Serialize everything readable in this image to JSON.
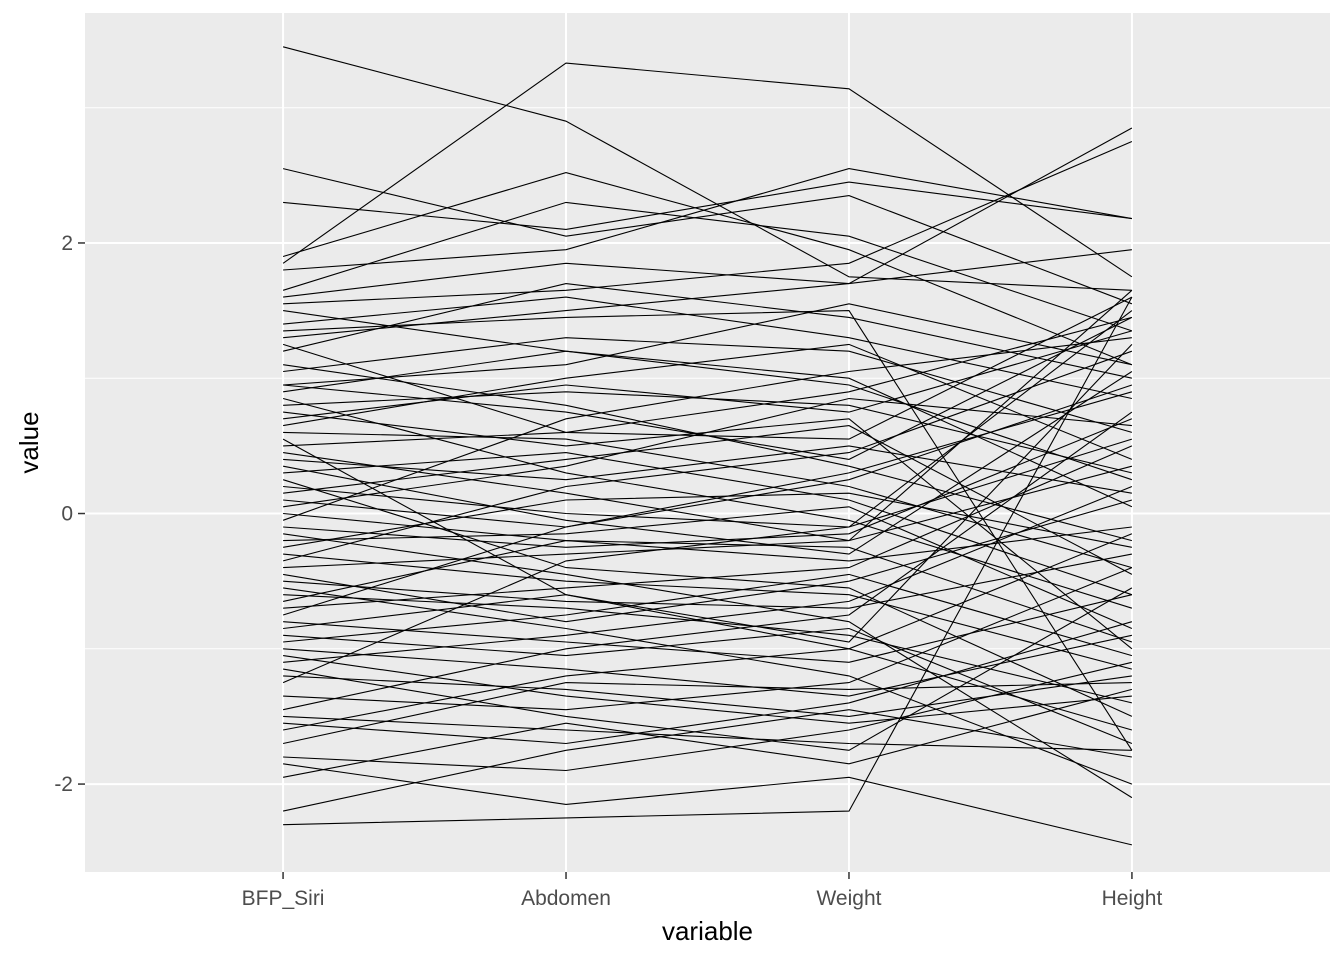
{
  "chart_data": {
    "type": "line",
    "title": "",
    "xlabel": "variable",
    "ylabel": "value",
    "categories": [
      "BFP_Siri",
      "Abdomen",
      "Weight",
      "Height"
    ],
    "ylim": [
      -2.65,
      3.7
    ],
    "yticks": [
      -2,
      0,
      2
    ],
    "ytick_labels": [
      "-2",
      "0",
      "2"
    ],
    "grid": true,
    "legend": "none",
    "colors": {
      "panel": "#EBEBEB",
      "grid": "#FFFFFF",
      "line": "#000000",
      "tick_text": "#4D4D4D"
    },
    "series": [
      {
        "values": [
          3.45,
          2.9,
          1.75,
          1.65
        ]
      },
      {
        "values": [
          1.85,
          3.33,
          3.14,
          1.75
        ]
      },
      {
        "values": [
          2.55,
          2.05,
          2.35,
          1.55
        ]
      },
      {
        "values": [
          2.3,
          2.1,
          2.45,
          2.18
        ]
      },
      {
        "values": [
          1.9,
          2.52,
          1.95,
          1.1
        ]
      },
      {
        "values": [
          1.8,
          1.95,
          2.55,
          2.18
        ]
      },
      {
        "values": [
          1.65,
          2.3,
          2.05,
          1.35
        ]
      },
      {
        "values": [
          1.6,
          1.85,
          1.7,
          2.85
        ]
      },
      {
        "values": [
          1.55,
          1.65,
          1.85,
          2.75
        ]
      },
      {
        "values": [
          1.4,
          1.6,
          1.3,
          0.85
        ]
      },
      {
        "values": [
          1.3,
          1.5,
          1.7,
          1.95
        ]
      },
      {
        "values": [
          1.2,
          1.7,
          1.45,
          1.0
        ]
      },
      {
        "values": [
          1.05,
          1.3,
          1.2,
          0.6
        ]
      },
      {
        "values": [
          0.95,
          1.1,
          1.55,
          1.1
        ]
      },
      {
        "values": [
          0.8,
          0.9,
          0.8,
          0.3
        ]
      },
      {
        "values": [
          0.7,
          0.95,
          0.75,
          1.35
        ]
      },
      {
        "values": [
          0.6,
          0.55,
          0.2,
          -0.4
        ]
      },
      {
        "values": [
          0.5,
          0.6,
          0.9,
          1.45
        ]
      },
      {
        "values": [
          0.4,
          0.25,
          0.5,
          0.15
        ]
      },
      {
        "values": [
          0.3,
          0.45,
          0.1,
          -0.6
        ]
      },
      {
        "values": [
          0.2,
          0.0,
          -0.1,
          0.55
        ]
      },
      {
        "values": [
          0.1,
          -0.1,
          0.3,
          0.9
        ]
      },
      {
        "values": [
          0.0,
          -0.2,
          -0.35,
          -0.1
        ]
      },
      {
        "values": [
          -0.1,
          -0.25,
          -0.15,
          0.7
        ]
      },
      {
        "values": [
          -0.2,
          -0.15,
          0.05,
          -0.85
        ]
      },
      {
        "values": [
          -0.3,
          -0.5,
          -0.6,
          -1.15
        ]
      },
      {
        "values": [
          -0.4,
          -0.3,
          -0.2,
          0.35
        ]
      },
      {
        "values": [
          -0.5,
          -0.65,
          -0.7,
          -0.3
        ]
      },
      {
        "values": [
          -0.6,
          -0.7,
          -0.9,
          -1.4
        ]
      },
      {
        "values": [
          -0.7,
          -0.55,
          -0.4,
          0.5
        ]
      },
      {
        "values": [
          -0.8,
          -0.95,
          -1.1,
          -0.6
        ]
      },
      {
        "values": [
          -0.9,
          -1.05,
          -0.85,
          -1.7
        ]
      },
      {
        "values": [
          -1.0,
          -1.15,
          -1.35,
          -0.9
        ]
      },
      {
        "values": [
          -1.1,
          -0.9,
          -0.65,
          0.2
        ]
      },
      {
        "values": [
          -1.2,
          -1.3,
          -1.5,
          -1.2
        ]
      },
      {
        "values": [
          -1.35,
          -1.45,
          -1.25,
          -0.4
        ]
      },
      {
        "values": [
          -1.5,
          -1.6,
          -1.7,
          -1.75
        ]
      },
      {
        "values": [
          -1.6,
          -1.2,
          -1.0,
          -0.15
        ]
      },
      {
        "values": [
          -1.8,
          -1.9,
          -1.6,
          -1.1
        ]
      },
      {
        "values": [
          -1.85,
          -2.15,
          -1.95,
          -2.45
        ]
      },
      {
        "values": [
          -1.95,
          -1.55,
          -1.85,
          -1.3
        ]
      },
      {
        "values": [
          -2.2,
          -1.75,
          -1.45,
          -1.8
        ]
      },
      {
        "values": [
          -2.3,
          -2.25,
          -2.2,
          1.6
        ]
      },
      {
        "values": [
          -0.05,
          0.7,
          1.05,
          1.3
        ]
      },
      {
        "values": [
          0.25,
          -0.4,
          -0.55,
          -1.5
        ]
      },
      {
        "values": [
          -0.35,
          0.2,
          0.45,
          1.2
        ]
      },
      {
        "values": [
          0.85,
          0.3,
          -0.05,
          -0.7
        ]
      },
      {
        "values": [
          -0.75,
          -0.1,
          0.25,
          0.95
        ]
      },
      {
        "values": [
          0.55,
          -0.6,
          -1.0,
          -1.6
        ]
      },
      {
        "values": [
          -1.25,
          -0.35,
          -0.1,
          1.5
        ]
      },
      {
        "values": [
          1.1,
          0.8,
          0.35,
          -0.2
        ]
      },
      {
        "values": [
          -0.55,
          -0.85,
          -1.2,
          -2.0
        ]
      },
      {
        "values": [
          0.15,
          0.4,
          0.65,
          -0.45
        ]
      },
      {
        "values": [
          -0.95,
          -0.75,
          -0.45,
          -1.05
        ]
      },
      {
        "values": [
          0.65,
          1.0,
          1.25,
          0.4
        ]
      },
      {
        "values": [
          -1.45,
          -1.0,
          -0.75,
          0.75
        ]
      },
      {
        "values": [
          0.35,
          -0.05,
          -0.3,
          1.05
        ]
      },
      {
        "values": [
          -0.15,
          -0.45,
          -0.8,
          -2.1
        ]
      },
      {
        "values": [
          1.25,
          0.6,
          0.55,
          1.6
        ]
      },
      {
        "values": [
          -0.65,
          -0.2,
          -0.25,
          -0.95
        ]
      },
      {
        "values": [
          0.9,
          1.2,
          1.0,
          0.05
        ]
      },
      {
        "values": [
          -1.05,
          -1.35,
          -1.55,
          -1.35
        ]
      },
      {
        "values": [
          0.45,
          0.15,
          -0.2,
          1.65
        ]
      },
      {
        "values": [
          -0.25,
          0.1,
          0.15,
          -0.25
        ]
      },
      {
        "values": [
          0.75,
          0.5,
          0.7,
          -1.0
        ]
      },
      {
        "values": [
          -1.15,
          -1.5,
          -1.75,
          -0.55
        ]
      },
      {
        "values": [
          1.5,
          1.2,
          0.95,
          0.25
        ]
      },
      {
        "values": [
          -0.85,
          -0.6,
          -0.95,
          1.25
        ]
      },
      {
        "values": [
          0.05,
          0.35,
          0.85,
          0.65
        ]
      },
      {
        "values": [
          -1.7,
          -1.25,
          -1.3,
          -1.25
        ]
      },
      {
        "values": [
          0.95,
          0.75,
          0.4,
          1.45
        ]
      },
      {
        "values": [
          -0.45,
          -0.8,
          -0.5,
          0.1
        ]
      },
      {
        "values": [
          1.35,
          1.45,
          1.5,
          -1.75
        ]
      },
      {
        "values": [
          -1.55,
          -1.7,
          -1.4,
          -0.8
        ]
      }
    ]
  }
}
